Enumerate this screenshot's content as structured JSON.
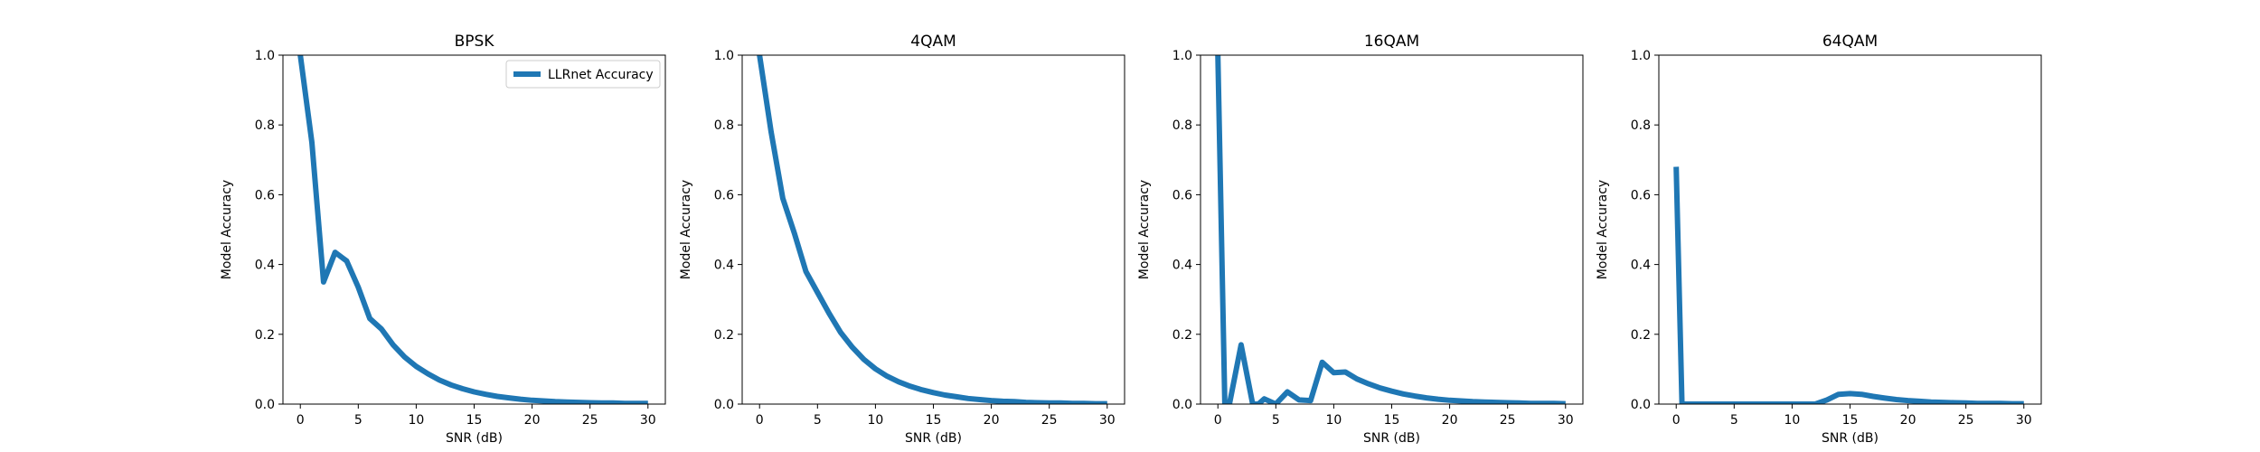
{
  "chart_data": [
    {
      "type": "line",
      "title": "BPSK",
      "xlabel": "SNR (dB)",
      "ylabel": "Model Accuracy",
      "xlim": [
        -1.5,
        31.5
      ],
      "ylim": [
        0,
        1
      ],
      "xticks": [
        0,
        5,
        10,
        15,
        20,
        25,
        30
      ],
      "yticks": [
        0.0,
        0.2,
        0.4,
        0.6,
        0.8,
        1.0
      ],
      "xtick_labels": [
        "0",
        "5",
        "10",
        "15",
        "20",
        "25",
        "30"
      ],
      "ytick_labels": [
        "0.0",
        "0.2",
        "0.4",
        "0.6",
        "0.8",
        "1.0"
      ],
      "legend": {
        "position": "top-right",
        "entries": [
          "LLRnet Accuracy"
        ]
      },
      "series": [
        {
          "name": "LLRnet Accuracy",
          "color": "#1f77b4",
          "x": [
            0,
            1,
            2,
            3,
            4,
            5,
            6,
            7,
            8,
            9,
            10,
            11,
            12,
            13,
            14,
            15,
            16,
            17,
            18,
            19,
            20,
            21,
            22,
            23,
            24,
            25,
            26,
            27,
            28,
            29,
            30
          ],
          "y": [
            1.0,
            0.75,
            0.35,
            0.435,
            0.41,
            0.335,
            0.245,
            0.215,
            0.17,
            0.135,
            0.108,
            0.087,
            0.069,
            0.055,
            0.044,
            0.035,
            0.028,
            0.022,
            0.018,
            0.014,
            0.011,
            0.009,
            0.007,
            0.006,
            0.005,
            0.004,
            0.003,
            0.003,
            0.002,
            0.002,
            0.002
          ]
        }
      ]
    },
    {
      "type": "line",
      "title": "4QAM",
      "xlabel": "SNR (dB)",
      "ylabel": "Model Accuracy",
      "xlim": [
        -1.5,
        31.5
      ],
      "ylim": [
        0,
        1
      ],
      "xticks": [
        0,
        5,
        10,
        15,
        20,
        25,
        30
      ],
      "yticks": [
        0.0,
        0.2,
        0.4,
        0.6,
        0.8,
        1.0
      ],
      "xtick_labels": [
        "0",
        "5",
        "10",
        "15",
        "20",
        "25",
        "30"
      ],
      "ytick_labels": [
        "0.0",
        "0.2",
        "0.4",
        "0.6",
        "0.8",
        "1.0"
      ],
      "series": [
        {
          "color": "#1f77b4",
          "x": [
            0,
            1,
            2,
            3,
            4,
            5,
            6,
            7,
            8,
            9,
            10,
            11,
            12,
            13,
            14,
            15,
            16,
            17,
            18,
            19,
            20,
            21,
            22,
            23,
            24,
            25,
            26,
            27,
            28,
            29,
            30
          ],
          "y": [
            1.0,
            0.78,
            0.59,
            0.49,
            0.38,
            0.32,
            0.26,
            0.205,
            0.163,
            0.128,
            0.101,
            0.08,
            0.064,
            0.051,
            0.041,
            0.033,
            0.026,
            0.021,
            0.016,
            0.013,
            0.01,
            0.008,
            0.007,
            0.005,
            0.004,
            0.003,
            0.003,
            0.002,
            0.002,
            0.001,
            0.001
          ]
        }
      ]
    },
    {
      "type": "line",
      "title": "16QAM",
      "xlabel": "SNR (dB)",
      "ylabel": "Model Accuracy",
      "xlim": [
        -1.5,
        31.5
      ],
      "ylim": [
        0,
        1
      ],
      "xticks": [
        0,
        5,
        10,
        15,
        20,
        25,
        30
      ],
      "yticks": [
        0.0,
        0.2,
        0.4,
        0.6,
        0.8,
        1.0
      ],
      "xtick_labels": [
        "0",
        "5",
        "10",
        "15",
        "20",
        "25",
        "30"
      ],
      "ytick_labels": [
        "0.0",
        "0.2",
        "0.4",
        "0.6",
        "0.8",
        "1.0"
      ],
      "series": [
        {
          "color": "#1f77b4",
          "x": [
            0,
            0.6,
            1,
            2,
            3,
            3.5,
            4,
            5,
            6,
            7,
            8,
            9,
            10,
            11,
            12,
            13,
            14,
            15,
            16,
            17,
            18,
            19,
            20,
            21,
            22,
            23,
            24,
            25,
            26,
            27,
            28,
            29,
            30
          ],
          "y": [
            1.0,
            0.0,
            0.0,
            0.17,
            0.0,
            0.0,
            0.015,
            0.0,
            0.035,
            0.012,
            0.01,
            0.12,
            0.09,
            0.092,
            0.072,
            0.058,
            0.046,
            0.037,
            0.029,
            0.023,
            0.018,
            0.014,
            0.011,
            0.009,
            0.007,
            0.006,
            0.005,
            0.004,
            0.003,
            0.002,
            0.002,
            0.002,
            0.001
          ]
        }
      ]
    },
    {
      "type": "line",
      "title": "64QAM",
      "xlabel": "SNR (dB)",
      "ylabel": "Model Accuracy",
      "xlim": [
        -1.5,
        31.5
      ],
      "ylim": [
        0,
        1
      ],
      "xticks": [
        0,
        5,
        10,
        15,
        20,
        25,
        30
      ],
      "yticks": [
        0.0,
        0.2,
        0.4,
        0.6,
        0.8,
        1.0
      ],
      "xtick_labels": [
        "0",
        "5",
        "10",
        "15",
        "20",
        "25",
        "30"
      ],
      "ytick_labels": [
        "0.0",
        "0.2",
        "0.4",
        "0.6",
        "0.8",
        "1.0"
      ],
      "series": [
        {
          "color": "#1f77b4",
          "x": [
            0,
            0.5,
            1,
            2,
            3,
            4,
            5,
            6,
            7,
            8,
            9,
            10,
            11,
            12,
            13,
            14,
            15,
            16,
            17,
            18,
            19,
            20,
            21,
            22,
            23,
            24,
            25,
            26,
            27,
            28,
            29,
            30
          ],
          "y": [
            0.68,
            0.0,
            0.0,
            0.0,
            0.0,
            0.0,
            0.0,
            0.0,
            0.0,
            0.0,
            0.0,
            0.0,
            0.0,
            0.0,
            0.012,
            0.028,
            0.03,
            0.028,
            0.022,
            0.017,
            0.013,
            0.01,
            0.008,
            0.006,
            0.005,
            0.004,
            0.003,
            0.002,
            0.002,
            0.002,
            0.001,
            0.001
          ]
        }
      ]
    }
  ]
}
